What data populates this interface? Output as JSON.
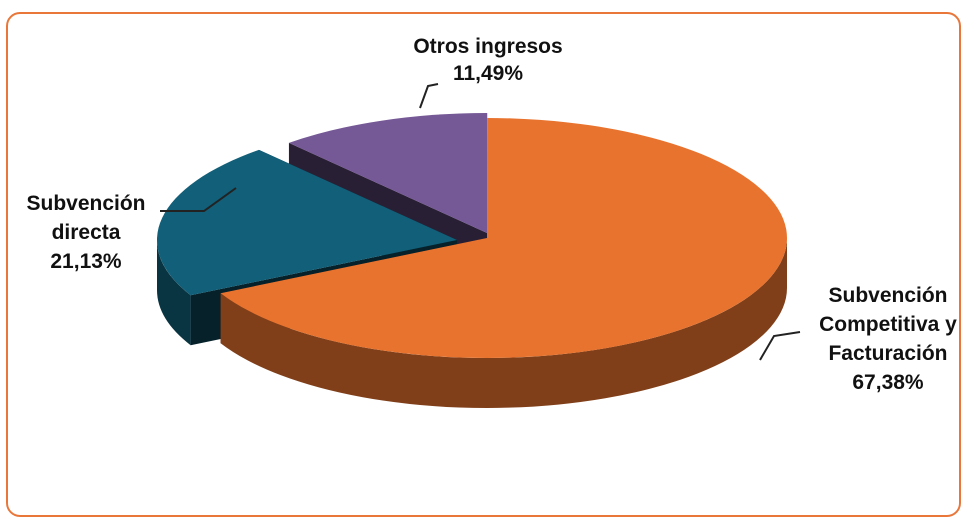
{
  "chart_data": {
    "type": "pie",
    "style": "3d-exploded",
    "legend": "none",
    "title": "",
    "slices": [
      {
        "label_lines": [
          "Subvención",
          "Competitiva y",
          "Facturación"
        ],
        "value_label": "67,38%",
        "value": 67.38,
        "color": "#e8732e"
      },
      {
        "label_lines": [
          "Subvención",
          "directa"
        ],
        "value_label": "21,13%",
        "value": 21.13,
        "color": "#115f78"
      },
      {
        "label_lines": [
          "Otros ingresos"
        ],
        "value_label": "11,49%",
        "value": 11.49,
        "color": "#755896"
      }
    ]
  }
}
